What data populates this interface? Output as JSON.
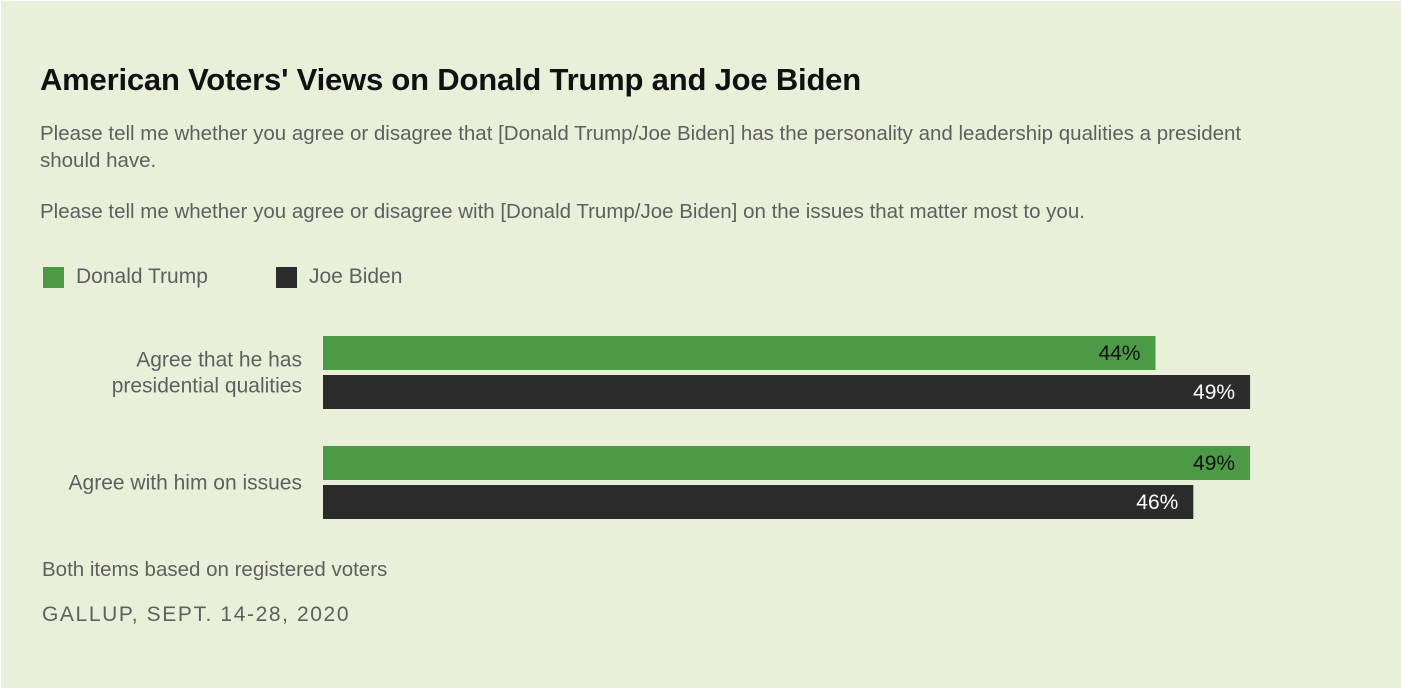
{
  "title": "American Voters' Views on Donald Trump and Joe Biden",
  "subtitles": [
    "Please tell me whether you agree or disagree that [Donald Trump/Joe Biden] has the personality and leadership qualities a president should have.",
    "Please tell me whether you agree or disagree with [Donald Trump/Joe Biden] on the issues that matter most to you."
  ],
  "note": "Both items based on registered voters",
  "source": "GALLUP, SEPT. 14-28, 2020",
  "colors": {
    "background": "#e9f0da",
    "trump": "#4c9a45",
    "biden": "#2b2b2b"
  },
  "chart_data": {
    "type": "bar",
    "orientation": "horizontal",
    "categories": [
      [
        "Agree that he has",
        "presidential qualities"
      ],
      [
        "Agree with him on issues"
      ]
    ],
    "series": [
      {
        "name": "Donald Trump",
        "color": "#4c9a45",
        "values": [
          44,
          49
        ],
        "labels": [
          "44%",
          "49%"
        ]
      },
      {
        "name": "Joe Biden",
        "color": "#2b2b2b",
        "values": [
          49,
          46
        ],
        "labels": [
          "49%",
          "46%"
        ]
      }
    ],
    "legend_position": "top-left",
    "grid": false
  }
}
